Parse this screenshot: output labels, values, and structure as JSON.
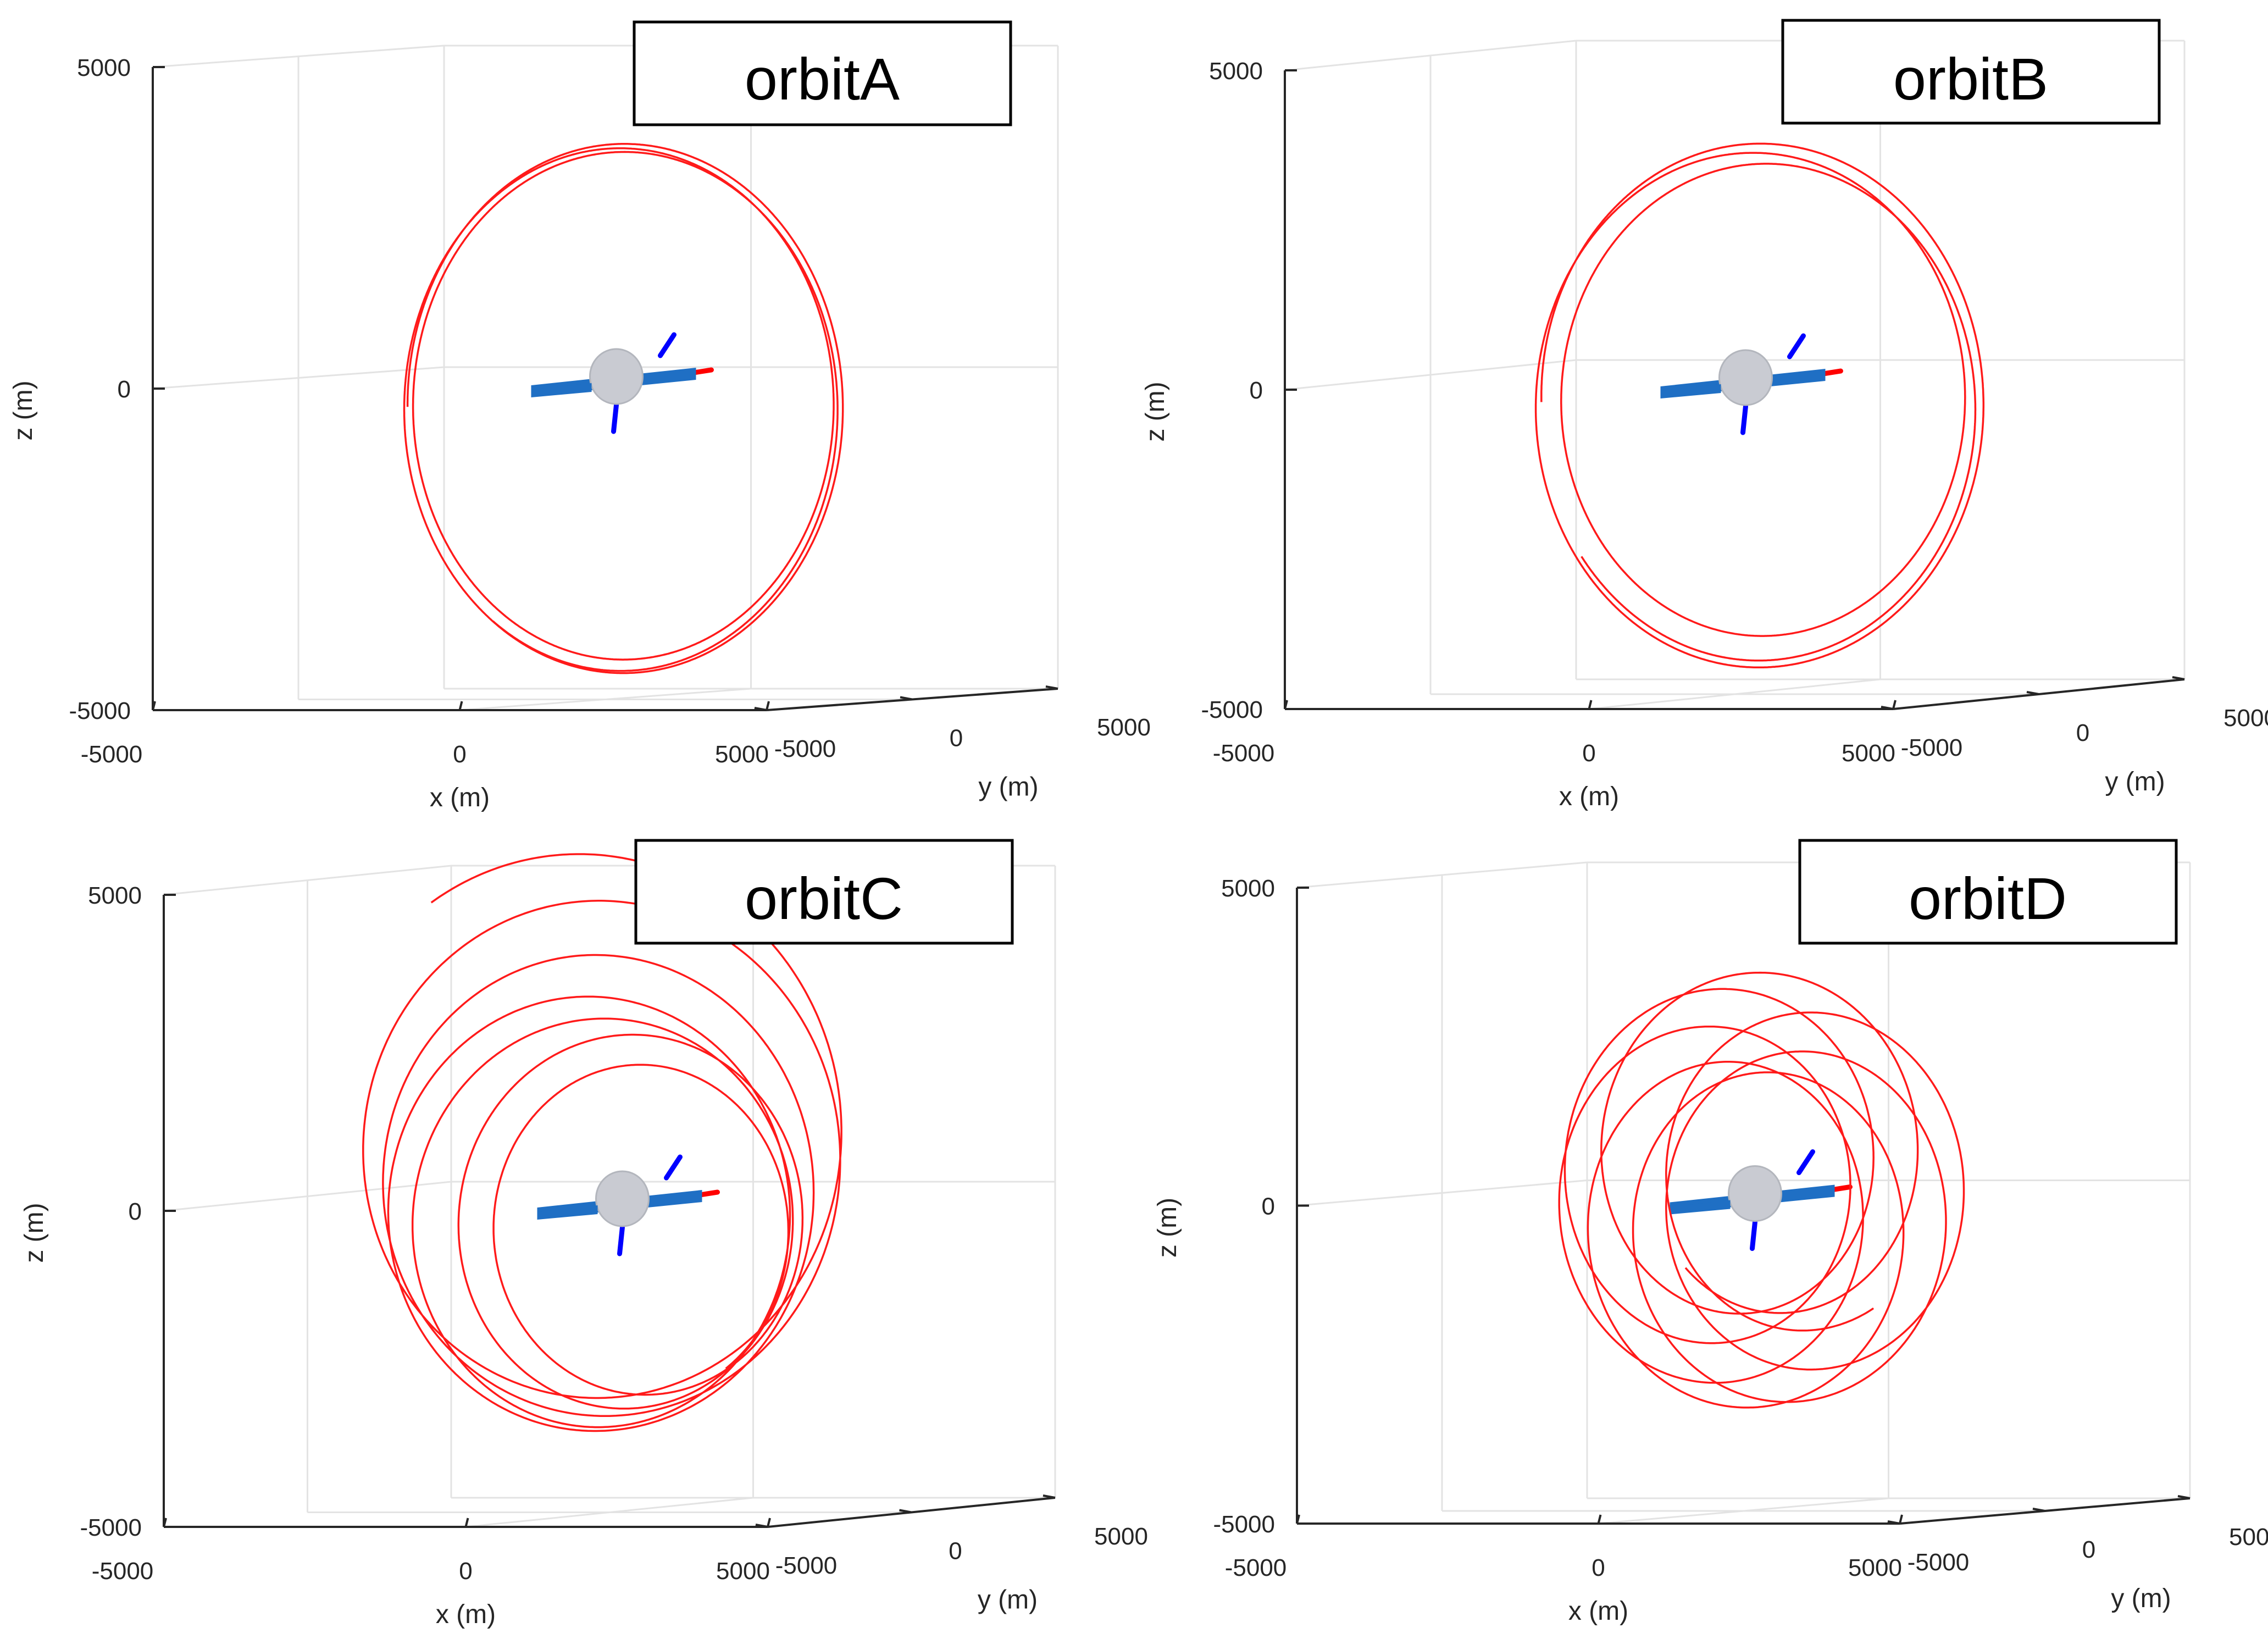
{
  "figure": {
    "panel_count": 4
  },
  "chart_data": [
    {
      "type": "line3d",
      "title": "orbitA",
      "xlabel": "x (m)",
      "ylabel": "y (m)",
      "zlabel": "z (m)",
      "xlim": [
        -5000,
        5000
      ],
      "ylim": [
        -5000,
        5000
      ],
      "zlim": [
        -5000,
        5000
      ],
      "xticks": [
        -5000,
        0,
        5000
      ],
      "yticks": [
        -5000,
        0,
        5000
      ],
      "zticks": [
        -5000,
        0,
        5000
      ],
      "x_tick_labels": [
        "-5000",
        "0",
        "5000"
      ],
      "y_tick_labels": [
        "-5000",
        "0",
        "5000"
      ],
      "z_tick_labels": [
        "-5000",
        "0",
        "5000"
      ],
      "grid": true,
      "series": [
        {
          "name": "orbit trajectory",
          "color": "#ff1a1a",
          "model": {
            "kind": "circle",
            "r": 4030,
            "dr": 110,
            "cx": 160,
            "cz": -290,
            "turns": 2.85,
            "phase": 3.14,
            "rx_scale": 0.965,
            "drift": 0
          }
        }
      ],
      "body": {
        "name": "asteroid with solar array",
        "body_color": "#c9cbd2",
        "array_color": "#1f6fc4",
        "x_axis_color": "#ff0000",
        "z_axis_color": "#0000ff"
      }
    },
    {
      "type": "line3d",
      "title": "orbitB",
      "xlabel": "x (m)",
      "ylabel": "y (m)",
      "zlabel": "z (m)",
      "xlim": [
        -5000,
        5000
      ],
      "ylim": [
        -5000,
        5000
      ],
      "zlim": [
        -5000,
        5000
      ],
      "xticks": [
        -5000,
        0,
        5000
      ],
      "yticks": [
        -5000,
        0,
        5000
      ],
      "zticks": [
        -5000,
        0,
        5000
      ],
      "x_tick_labels": [
        "-5000",
        "0",
        "5000"
      ],
      "y_tick_labels": [
        "-5000",
        "0",
        "5000"
      ],
      "z_tick_labels": [
        "-5000",
        "0",
        "5000"
      ],
      "grid": true,
      "series": [
        {
          "name": "orbit trajectory",
          "color": "#ff1a1a",
          "model": {
            "kind": "circle",
            "r": 3900,
            "dr": 260,
            "cx": 220,
            "cz": -200,
            "turns": 2.9,
            "phase": 3.14,
            "rx_scale": 1.0,
            "drift": 160
          }
        }
      ],
      "body": {
        "name": "asteroid with solar array",
        "body_color": "#c9cbd2",
        "array_color": "#1f6fc4",
        "x_axis_color": "#ff0000",
        "z_axis_color": "#0000ff"
      }
    },
    {
      "type": "line3d",
      "title": "orbitC",
      "xlabel": "x (m)",
      "ylabel": "y (m)",
      "zlabel": "z (m)",
      "xlim": [
        -5000,
        5000
      ],
      "ylim": [
        -5000,
        5000
      ],
      "zlim": [
        -5000,
        5000
      ],
      "xticks": [
        -5000,
        0,
        5000
      ],
      "yticks": [
        -5000,
        0,
        5000
      ],
      "zticks": [
        -5000,
        0,
        5000
      ],
      "x_tick_labels": [
        "-5000",
        "0",
        "5000"
      ],
      "y_tick_labels": [
        "-5000",
        "0",
        "5000"
      ],
      "z_tick_labels": [
        "-5000",
        "0",
        "5000"
      ],
      "grid": true,
      "series": [
        {
          "name": "orbit trajectory",
          "color": "#ff1a1a",
          "model": {
            "kind": "precess",
            "a_start": 4700,
            "a_end": 2600,
            "b_start": 4300,
            "b_end": 2500,
            "cx_start": -700,
            "cx_end": 300,
            "cz_start": 1100,
            "cz_end": -700,
            "turns": 6.5,
            "phase": 2.2,
            "wobble": 300
          }
        }
      ],
      "body": {
        "name": "asteroid with solar array",
        "body_color": "#c9cbd2",
        "array_color": "#1f6fc4",
        "x_axis_color": "#ff0000",
        "z_axis_color": "#0000ff"
      }
    },
    {
      "type": "line3d",
      "title": "orbitD",
      "xlabel": "x (m)",
      "ylabel": "y (m)",
      "zlabel": "z (m)",
      "xlim": [
        -5000,
        5000
      ],
      "ylim": [
        -5000,
        5000
      ],
      "zlim": [
        -5000,
        5000
      ],
      "xticks": [
        -5000,
        0,
        5000
      ],
      "yticks": [
        -5000,
        0,
        5000
      ],
      "zticks": [
        -5000,
        0,
        5000
      ],
      "x_tick_labels": [
        "-5000",
        "0",
        "5000"
      ],
      "y_tick_labels": [
        "-5000",
        "0",
        "5000"
      ],
      "z_tick_labels": [
        "-5000",
        "0",
        "5000"
      ],
      "grid": true,
      "series": [
        {
          "name": "orbit trajectory",
          "color": "#ff1a1a",
          "model": {
            "kind": "rosette",
            "r": 2700,
            "cx": 150,
            "cz": 230,
            "turns": 7.2,
            "phase": 5.2,
            "orbit_amp": 1050,
            "orbit_freq": 0.13
          }
        }
      ],
      "body": {
        "name": "asteroid with solar array",
        "body_color": "#c9cbd2",
        "array_color": "#1f6fc4",
        "x_axis_color": "#ff0000",
        "z_axis_color": "#0000ff"
      }
    }
  ]
}
